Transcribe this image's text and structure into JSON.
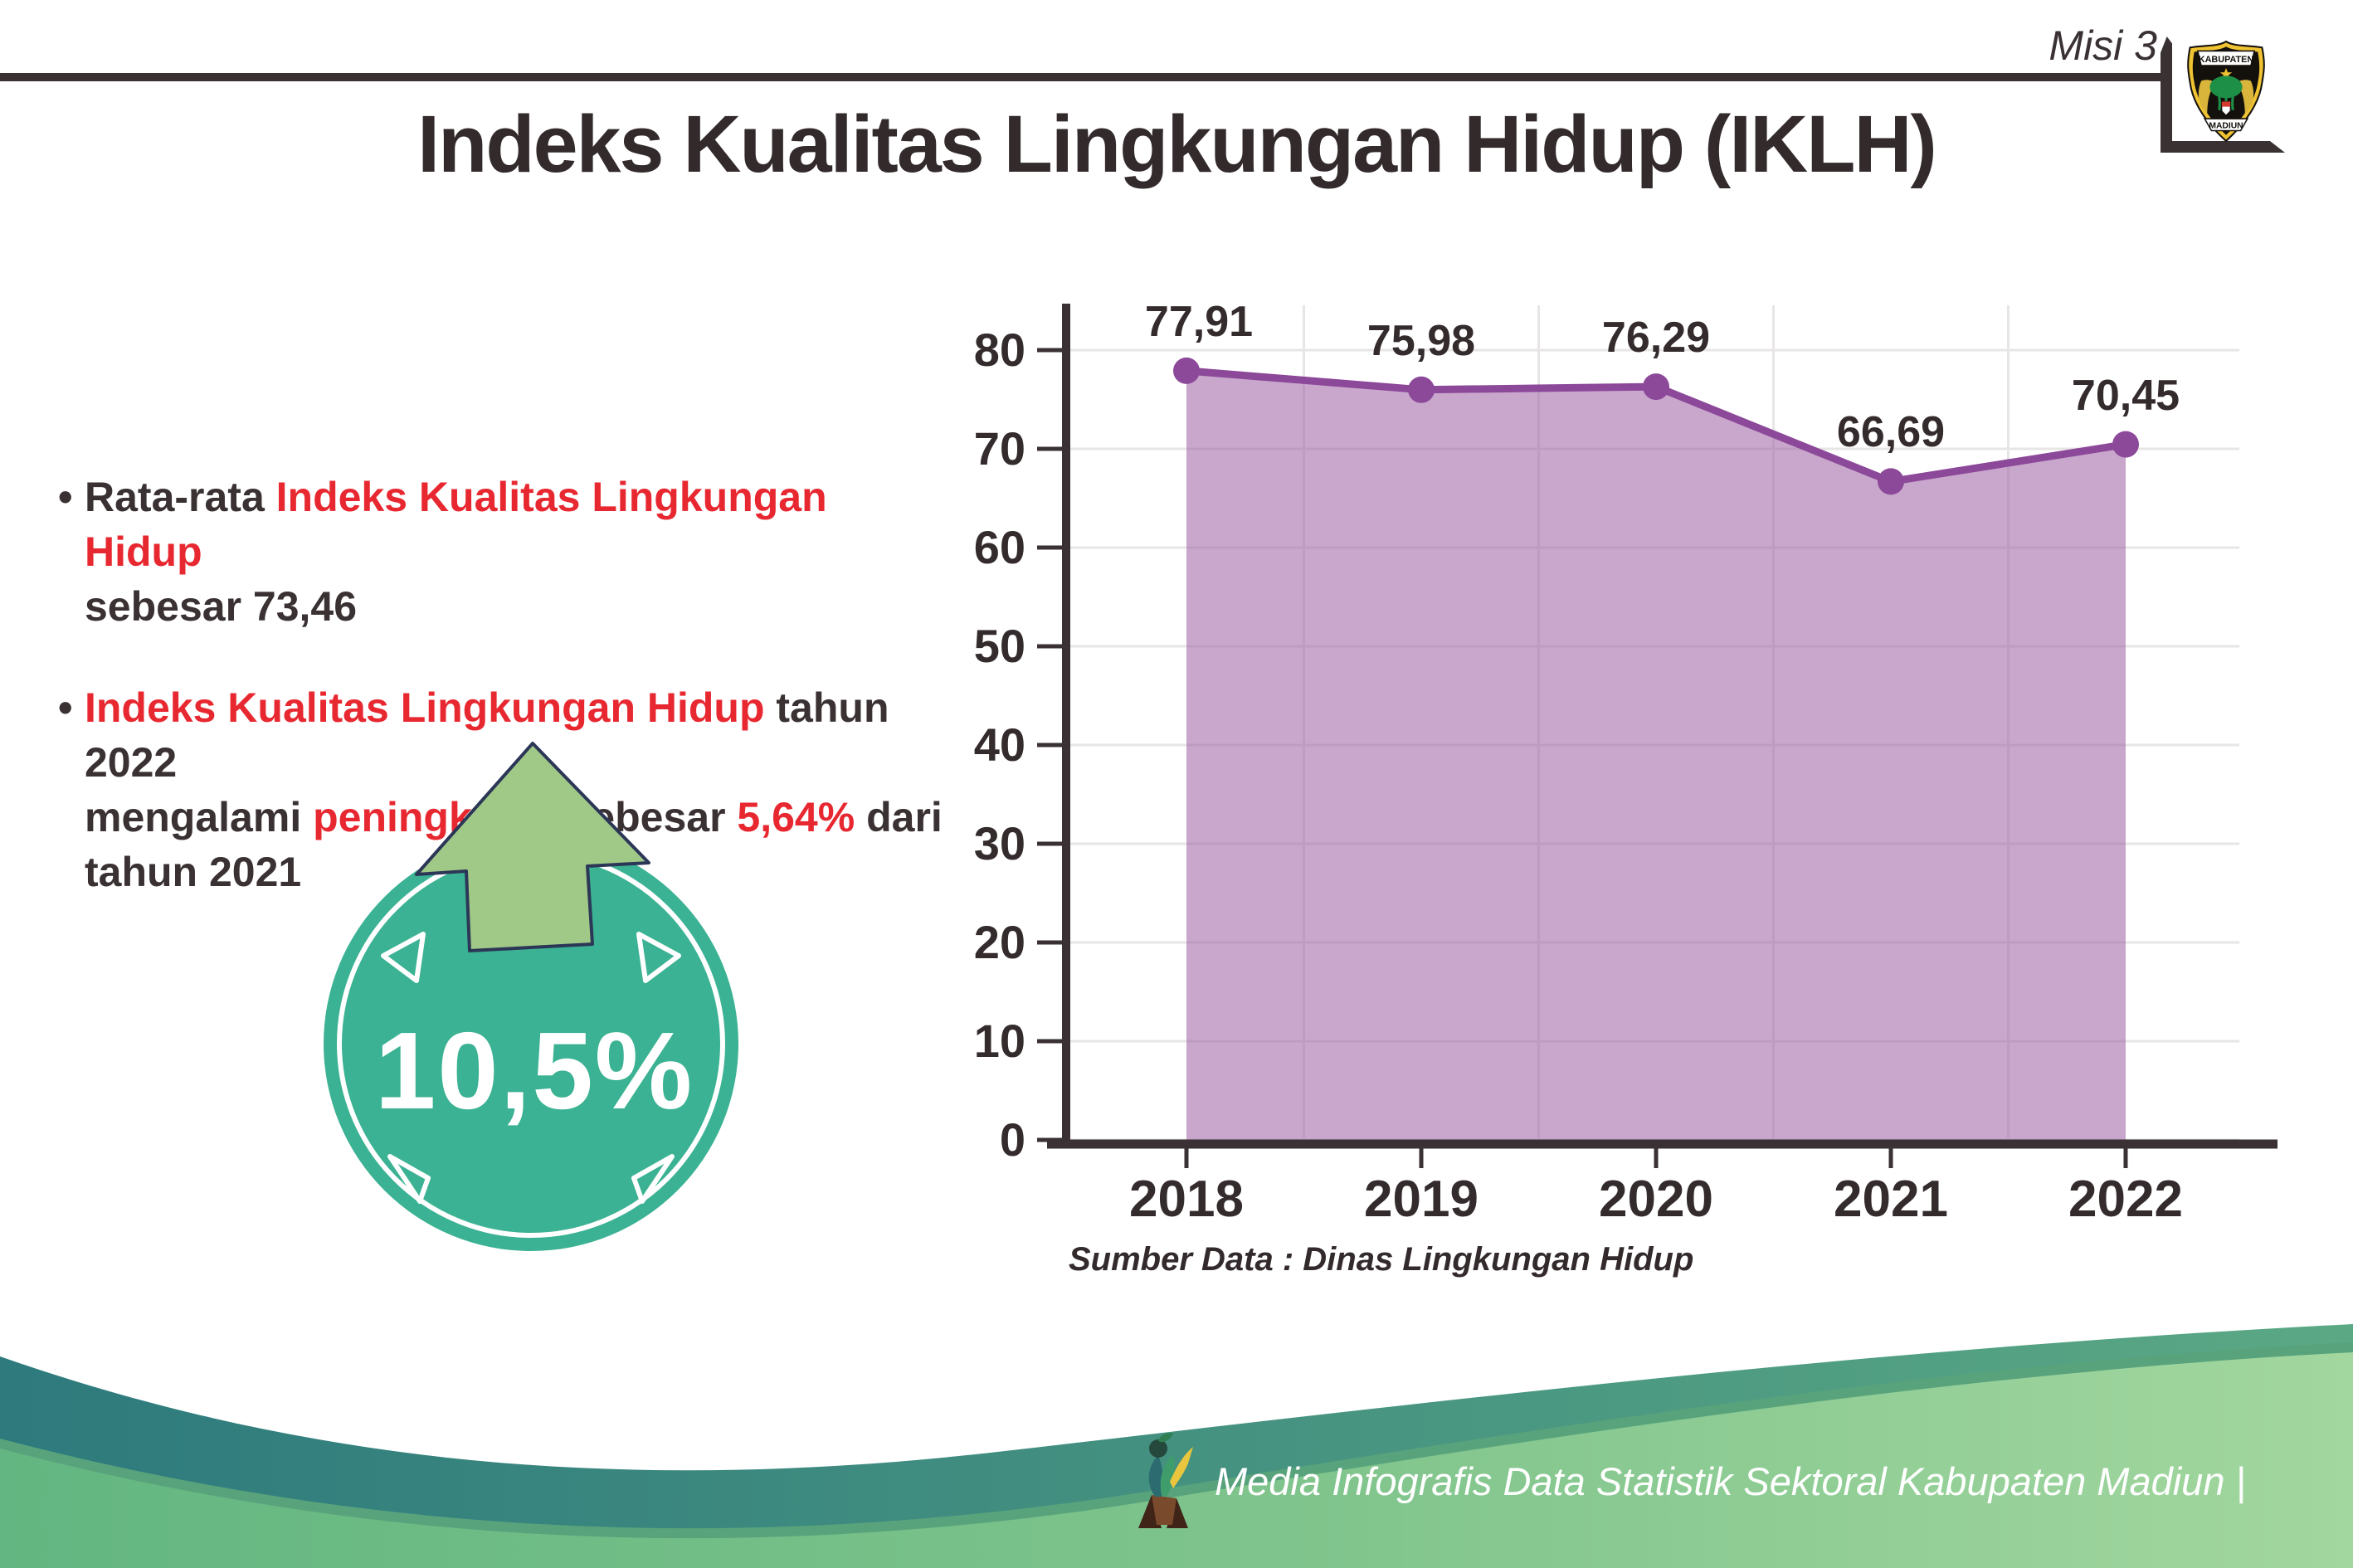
{
  "header": {
    "misi_label": "Misi 3",
    "title": "Indeks Kualitas Lingkungan Hidup (IKLH)"
  },
  "seal": {
    "top_text": "KABUPATEN",
    "bottom_text": "MADIUN"
  },
  "bullets": {
    "bullet_char": "•",
    "b1": {
      "l1_black": "Rata-rata ",
      "l1_red": "Indeks Kualitas Lingkungan Hidup",
      "l2_black": "sebesar 73,46"
    },
    "b2": {
      "l1_red": "Indeks Kualitas Lingkungan Hidup",
      "l1_black": " tahun 2022",
      "l2_black1": "mengalami ",
      "l2_red1": "peningkatan",
      "l2_black2": " sebesar ",
      "l2_red2": "5,64%",
      "l2_black3": " dari",
      "l3_black": "tahun 2021"
    }
  },
  "badge": {
    "value": "10,5%",
    "icon": "up-arrow-icon",
    "circle_color": "#3bb293",
    "arrow_color": "#a0c987",
    "arrow_outline": "#2c3757"
  },
  "chart_data": {
    "type": "area",
    "categories": [
      "2018",
      "2019",
      "2020",
      "2021",
      "2022"
    ],
    "values": [
      77.91,
      75.98,
      76.29,
      66.69,
      70.45
    ],
    "value_labels": [
      "77,91",
      "75,98",
      "76,29",
      "66,69",
      "70,45"
    ],
    "title": "",
    "xlabel": "",
    "ylabel": "",
    "ylim": [
      0,
      80
    ],
    "ytick_step": 10,
    "grid": true,
    "legend": "none",
    "line_color": "#8c4899",
    "marker_color": "#8c4899",
    "fill_color": "rgba(151,86,160,0.52)",
    "axis_color": "#3a3134",
    "grid_color": "#e8e5e5",
    "label_color": "#342b2d"
  },
  "source_note": "Sumber Data : Dinas Lingkungan Hidup",
  "footer": {
    "credit": "Media Infografis Data Statistik Sektoral Kabupaten Madiun |",
    "mascot_icon": "statistics-mascot"
  },
  "colors": {
    "accent_red": "#e82830",
    "text_dark": "#3a3133",
    "wave_teal_left": "#2e7a7d",
    "wave_teal_right": "#5aa884",
    "wave_green_left": "#63b681,",
    "wave_green_right": "#a2d79f"
  }
}
